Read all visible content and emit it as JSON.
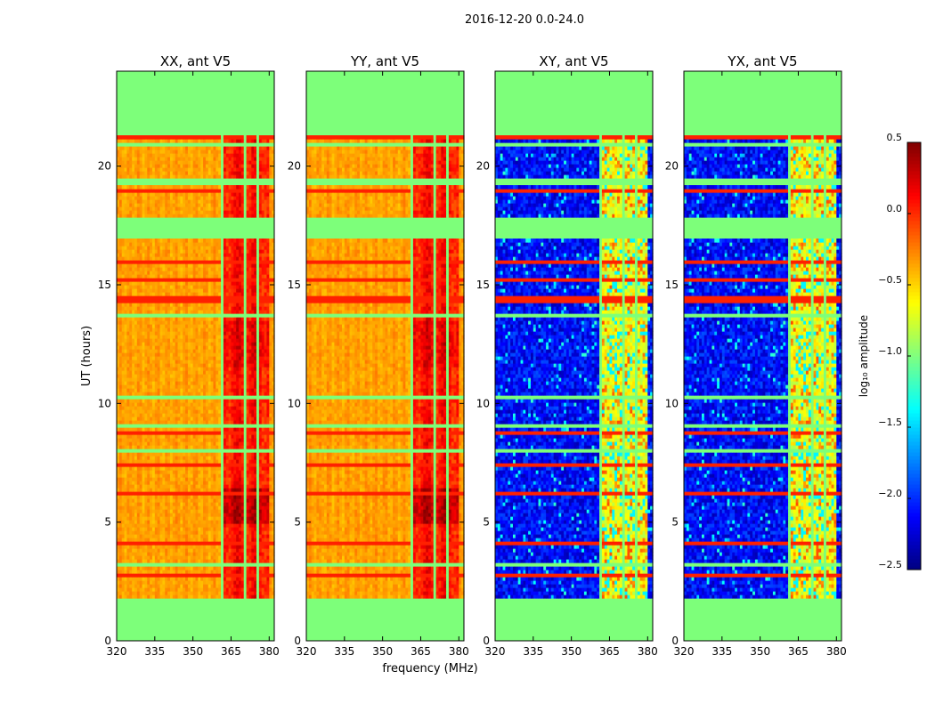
{
  "figure": {
    "suptitle": "2016-12-20 0.0-24.0",
    "xlabel": "frequency (MHz)",
    "ylabel": "UT (hours)"
  },
  "colors": {
    "empty": "#7dff7a",
    "colormap": "jet"
  },
  "chart_data": {
    "type": "heatmap",
    "x": {
      "label": "frequency (MHz)",
      "range": [
        320,
        382
      ],
      "ticks": [
        320,
        335,
        350,
        365,
        380
      ],
      "tick_labels": [
        "320",
        "335",
        "350",
        "365",
        "380"
      ]
    },
    "y": {
      "label": "UT (hours)",
      "range": [
        0,
        24
      ],
      "ticks": [
        0,
        5,
        10,
        15,
        20
      ],
      "tick_labels": [
        "0",
        "5",
        "10",
        "15",
        "20"
      ]
    },
    "colorbar": {
      "label": "log₁₀ amplitude",
      "range": [
        -2.5,
        0.5
      ],
      "ticks": [
        0.5,
        0.0,
        -0.5,
        -1.0,
        -1.5,
        -2.0,
        -2.5
      ],
      "tick_labels": [
        "0.5",
        "0.0",
        "−0.5",
        "−1.0",
        "−1.5",
        "−2.0",
        "−2.5"
      ]
    },
    "flagged_time_bands_hours": [
      [
        0,
        1.8
      ],
      [
        17.0,
        17.9
      ],
      [
        19.2,
        19.5
      ],
      [
        21.3,
        24
      ]
    ],
    "flagged_freq_bands_mhz": [
      [
        361.5,
        362.5
      ],
      [
        370.0,
        370.8
      ],
      [
        375.0,
        375.8
      ]
    ],
    "strong_emission_band_mhz": [
      362.5,
      380
    ],
    "panels": [
      {
        "title": "XX, ant V5",
        "kind": "parallel"
      },
      {
        "title": "YY, ant V5",
        "kind": "parallel"
      },
      {
        "title": "XY, ant V5",
        "kind": "cross"
      },
      {
        "title": "YX, ant V5",
        "kind": "cross"
      }
    ]
  }
}
